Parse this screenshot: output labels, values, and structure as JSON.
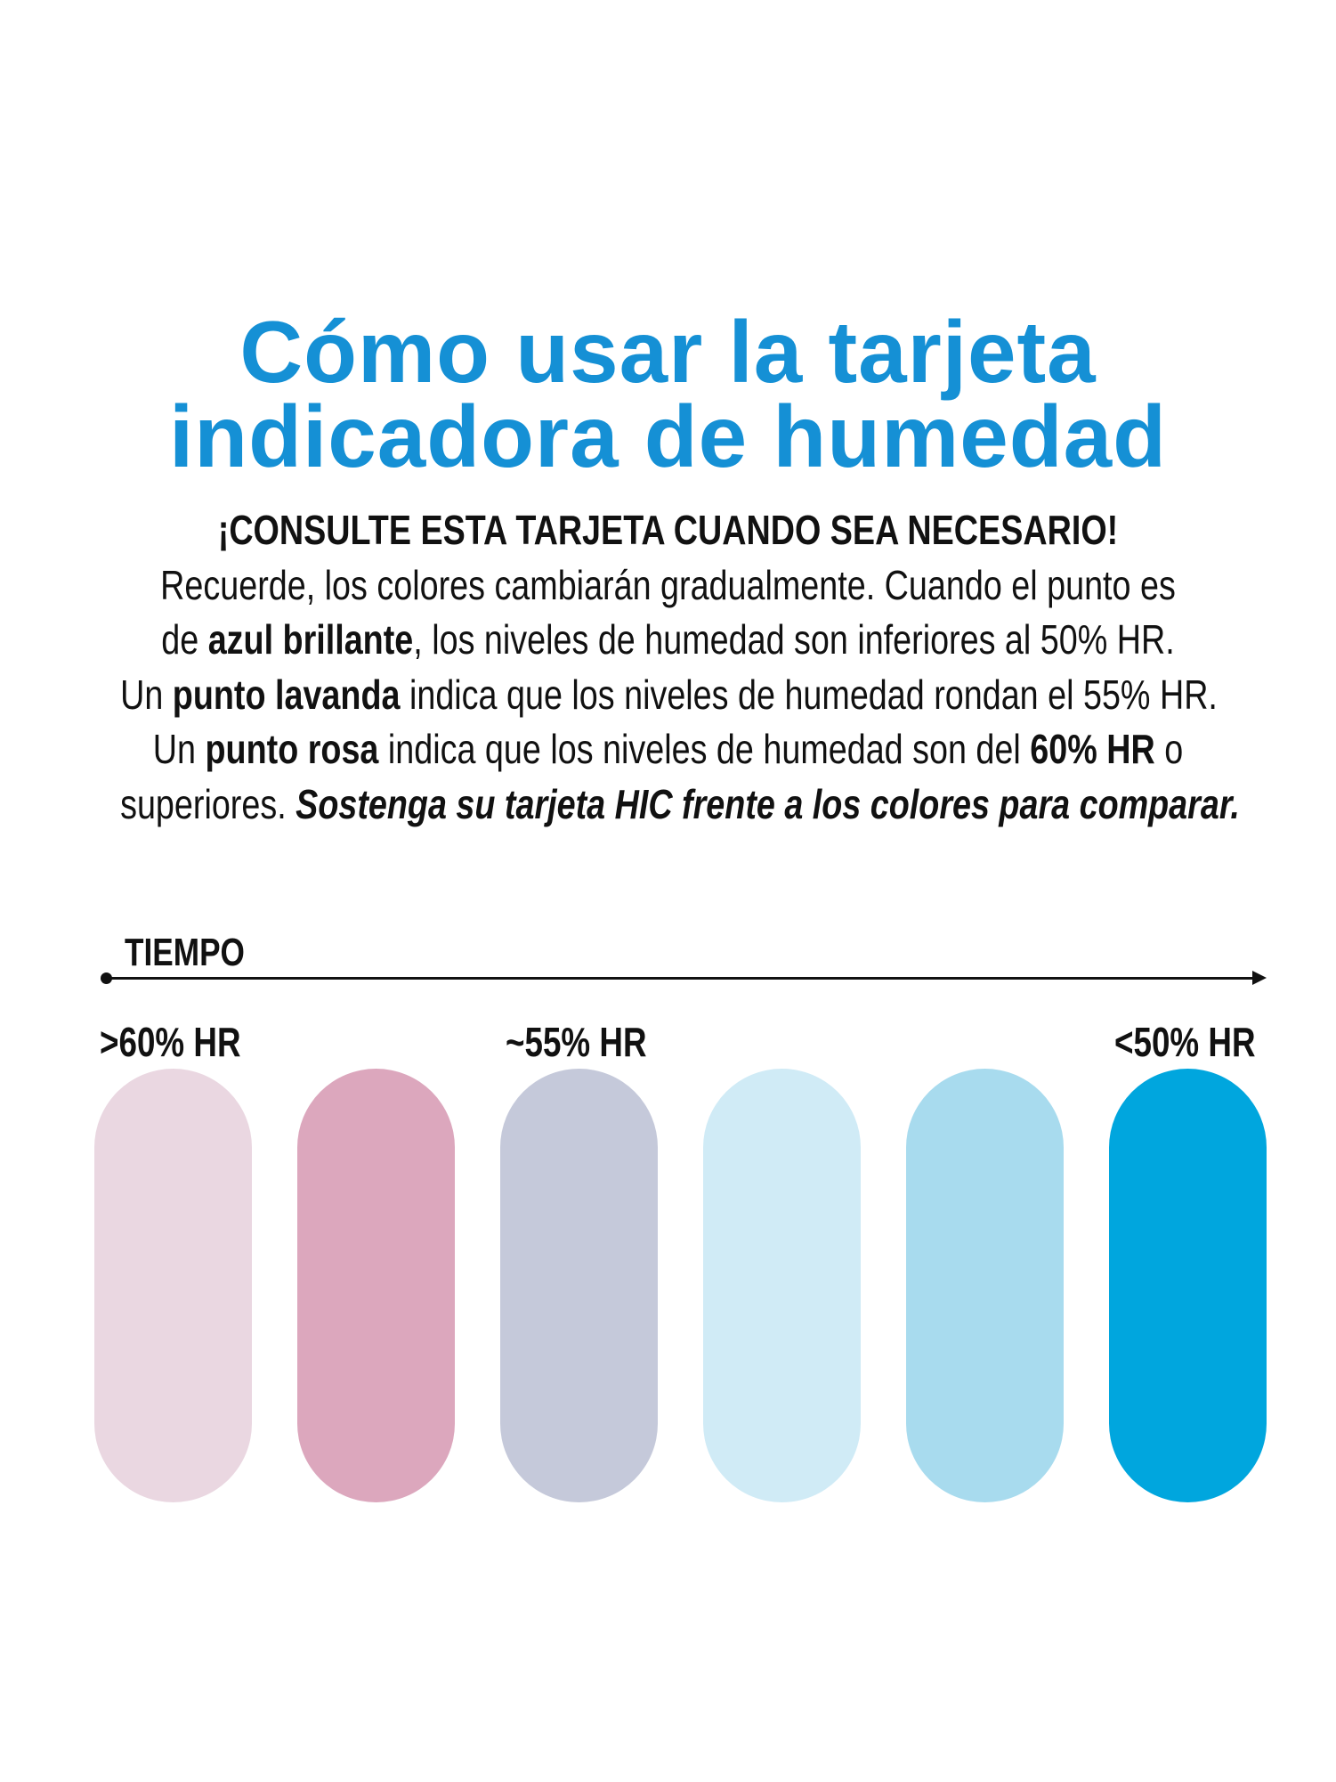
{
  "title": {
    "line1": "Cómo usar la tarjeta",
    "line2": "indicadora de humedad"
  },
  "subtitle": "¡CONSULTE ESTA TARJETA CUANDO SEA NECESARIO!",
  "body": {
    "l1": "Recuerde, los colores cambiarán gradualmente. Cuando el punto es",
    "l2a": "de ",
    "l2b": "azul brillante",
    "l2c": ", los niveles de humedad son inferiores al 50% HR.",
    "l3a": "Un ",
    "l3b": "punto lavanda",
    "l3c": " indica que los niveles de humedad rondan el 55% HR.",
    "l4a": "Un ",
    "l4b": "punto rosa",
    "l4c": " indica que los niveles de humedad son del ",
    "l4d": "60% HR",
    "l4e": " o",
    "l5a": "superiores. ",
    "l5b": "Sostenga su tarjeta HIC frente a los colores para comparar."
  },
  "timeline": {
    "label": "TIEMPO",
    "markers": [
      ">60% HR",
      "~55% HR",
      "<50% HR"
    ]
  },
  "swatches": [
    "#ead7e1",
    "#dca7bd",
    "#c5c9da",
    "#d0ebf6",
    "#a8dbee",
    "#00a6de"
  ],
  "colors": {
    "title": "#1590d5",
    "text": "#111111"
  }
}
